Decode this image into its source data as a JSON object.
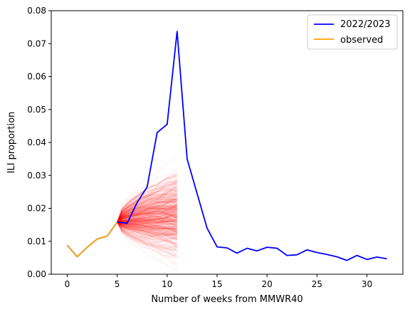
{
  "chart_data": {
    "type": "line",
    "title": "",
    "xlabel": "Number of weeks from MMWR40",
    "ylabel": "ILI proportion",
    "xlim": [
      -1.6,
      33.6
    ],
    "ylim": [
      0,
      0.08
    ],
    "xticks": [
      0,
      5,
      10,
      15,
      20,
      25,
      30
    ],
    "xtick_labels": [
      "0",
      "5",
      "10",
      "15",
      "20",
      "25",
      "30"
    ],
    "yticks": [
      0,
      0.01,
      0.02,
      0.03,
      0.04,
      0.05,
      0.06,
      0.07,
      0.08
    ],
    "ytick_labels": [
      "0.00",
      "0.01",
      "0.02",
      "0.03",
      "0.04",
      "0.05",
      "0.06",
      "0.07",
      "0.08"
    ],
    "grid": false,
    "legend_position": "top-right",
    "legend": [
      "2022/2023",
      "observed"
    ],
    "series": [
      {
        "name": "2022/2023",
        "color": "#0000ff",
        "x": [
          0,
          1,
          2,
          3,
          4,
          5,
          6,
          7,
          8,
          9,
          10,
          11,
          12,
          13,
          14,
          15,
          16,
          17,
          18,
          19,
          20,
          21,
          22,
          23,
          24,
          25,
          26,
          27,
          28,
          29,
          30,
          31,
          32
        ],
        "values": [
          0.0088,
          0.0053,
          0.0082,
          0.0107,
          0.0116,
          0.0158,
          0.0155,
          0.0218,
          0.0265,
          0.043,
          0.0455,
          0.0737,
          0.035,
          0.0245,
          0.014,
          0.0083,
          0.008,
          0.0064,
          0.0079,
          0.0071,
          0.0082,
          0.0079,
          0.0057,
          0.0059,
          0.0074,
          0.0066,
          0.006,
          0.0053,
          0.0042,
          0.0057,
          0.0045,
          0.0052,
          0.0047
        ]
      },
      {
        "name": "observed",
        "color": "#ffa500",
        "x": [
          0,
          1,
          2,
          3,
          4,
          5
        ],
        "values": [
          0.0088,
          0.0053,
          0.0082,
          0.0107,
          0.0116,
          0.0158
        ]
      }
    ],
    "forecast_trajectories": {
      "color": "#ff0000",
      "opacity": 0.07,
      "count": 400,
      "x_start": 5,
      "x_end": 11,
      "start_value": 0.0158,
      "range_at_end": [
        0.0005,
        0.0355
      ]
    }
  }
}
